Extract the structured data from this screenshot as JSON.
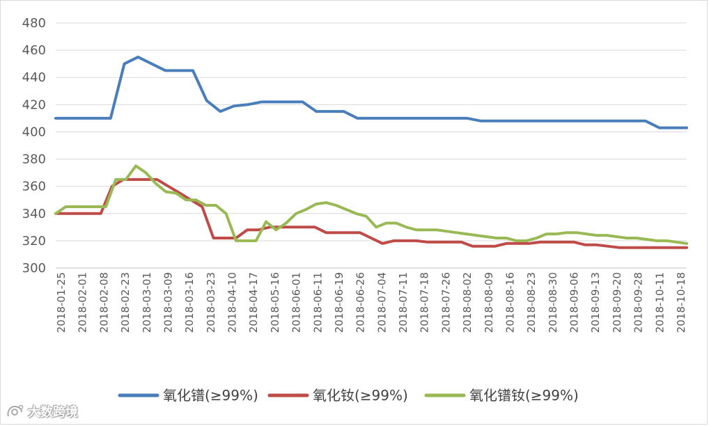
{
  "chart_data": {
    "type": "line",
    "ylim": [
      300,
      480
    ],
    "yticks": [
      300,
      320,
      340,
      360,
      380,
      400,
      420,
      440,
      460,
      480
    ],
    "y_tick_labels": [
      "300",
      "320",
      "340",
      "360",
      "380",
      "400",
      "420",
      "440",
      "460",
      "480"
    ],
    "grid": "horizontal",
    "legend_position": "bottom",
    "x_tick_labels": [
      "2018-01-25",
      "2018-02-01",
      "2018-02-08",
      "2018-02-23",
      "2018-03-01",
      "2018-03-09",
      "2018-03-16",
      "2018-03-23",
      "2018-04-10",
      "2018-04-17",
      "2018-05-16",
      "2018-06-01",
      "2018-06-11",
      "2018-06-19",
      "2018-06-26",
      "2018-07-04",
      "2018-07-11",
      "2018-07-18",
      "2018-07-26",
      "2018-08-02",
      "2018-08-09",
      "2018-08-16",
      "2018-08-23",
      "2018-08-30",
      "2018-09-06",
      "2018-09-13",
      "2018-09-20",
      "2018-09-28",
      "2018-10-11",
      "2018-10-18"
    ],
    "series": [
      {
        "name": "氧化镨(≥99%)",
        "color": "#4a7ebb",
        "values": [
          410,
          410,
          410,
          410,
          410,
          450,
          455,
          450,
          445,
          445,
          445,
          423,
          415,
          419,
          420,
          422,
          422,
          422,
          422,
          415,
          415,
          415,
          410,
          410,
          410,
          410,
          410,
          410,
          410,
          410,
          410,
          408,
          408,
          408,
          408,
          408,
          408,
          408,
          408,
          408,
          408,
          408,
          408,
          408,
          403,
          403,
          403
        ]
      },
      {
        "name": "氧化钕(≥99%)",
        "color": "#be4b48",
        "values": [
          340,
          340,
          340,
          340,
          340,
          360,
          365,
          365,
          365,
          365,
          360,
          355,
          350,
          345,
          322,
          322,
          322,
          328,
          328,
          330,
          330,
          330,
          330,
          330,
          326,
          326,
          326,
          326,
          322,
          318,
          320,
          320,
          320,
          319,
          319,
          319,
          319,
          316,
          316,
          316,
          318,
          318,
          318,
          319,
          319,
          319,
          319,
          317,
          317,
          316,
          315,
          315,
          315,
          315,
          315,
          315,
          315
        ]
      },
      {
        "name": "氧化镨钕(≥99%)",
        "color": "#98b954",
        "values": [
          340,
          345,
          345,
          345,
          345,
          345,
          365,
          365,
          375,
          370,
          362,
          356,
          355,
          350,
          350,
          346,
          346,
          340,
          320,
          320,
          320,
          334,
          328,
          333,
          340,
          343,
          347,
          348,
          346,
          343,
          340,
          338,
          330,
          333,
          333,
          330,
          328,
          328,
          328,
          327,
          326,
          325,
          324,
          323,
          322,
          322,
          320,
          320,
          322,
          325,
          325,
          326,
          326,
          325,
          324,
          324,
          323,
          322,
          322,
          321,
          320,
          320,
          319,
          318
        ]
      }
    ]
  },
  "watermark": {
    "text": "大数跨境"
  }
}
